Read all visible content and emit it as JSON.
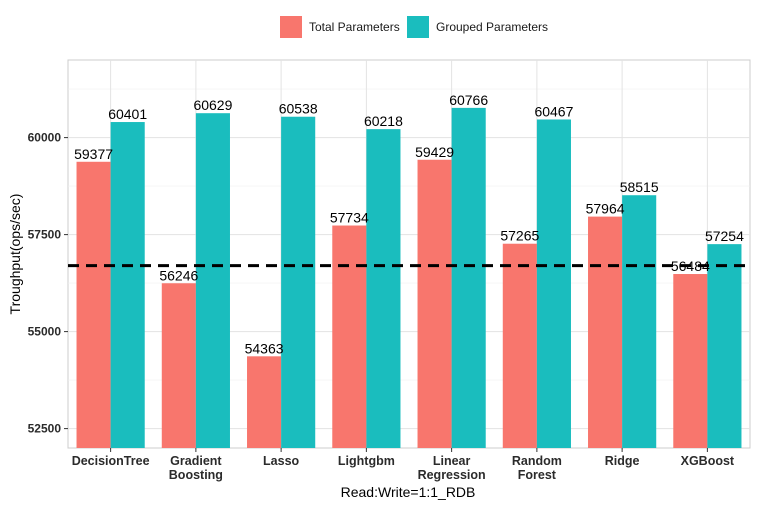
{
  "chart_data": {
    "type": "bar",
    "xlabel": "Read:Write=1:1_RDB",
    "ylabel": "Troughput(ops/sec)",
    "ylim": [
      52000,
      62000
    ],
    "yticks": [
      52500,
      55000,
      57500,
      60000
    ],
    "grid": true,
    "legend_position": "top",
    "categories": [
      [
        "DecisionTree"
      ],
      [
        "Gradient",
        "Boosting"
      ],
      [
        "Lasso"
      ],
      [
        "Lightgbm"
      ],
      [
        "Linear",
        "Regression"
      ],
      [
        "Random",
        "Forest"
      ],
      [
        "Ridge"
      ],
      [
        "XGBoost"
      ]
    ],
    "series": [
      {
        "name": "Total Parameters",
        "color": "#F8766D",
        "values": [
          59377,
          56246,
          54363,
          57734,
          59429,
          57265,
          57964,
          56484
        ]
      },
      {
        "name": "Grouped Parameters",
        "color": "#1ABDBE",
        "values": [
          60401,
          60629,
          60538,
          60218,
          60766,
          60467,
          58515,
          57254
        ]
      }
    ],
    "reference_line": {
      "y": 56700,
      "style": "dashed",
      "color": "#000000"
    }
  }
}
